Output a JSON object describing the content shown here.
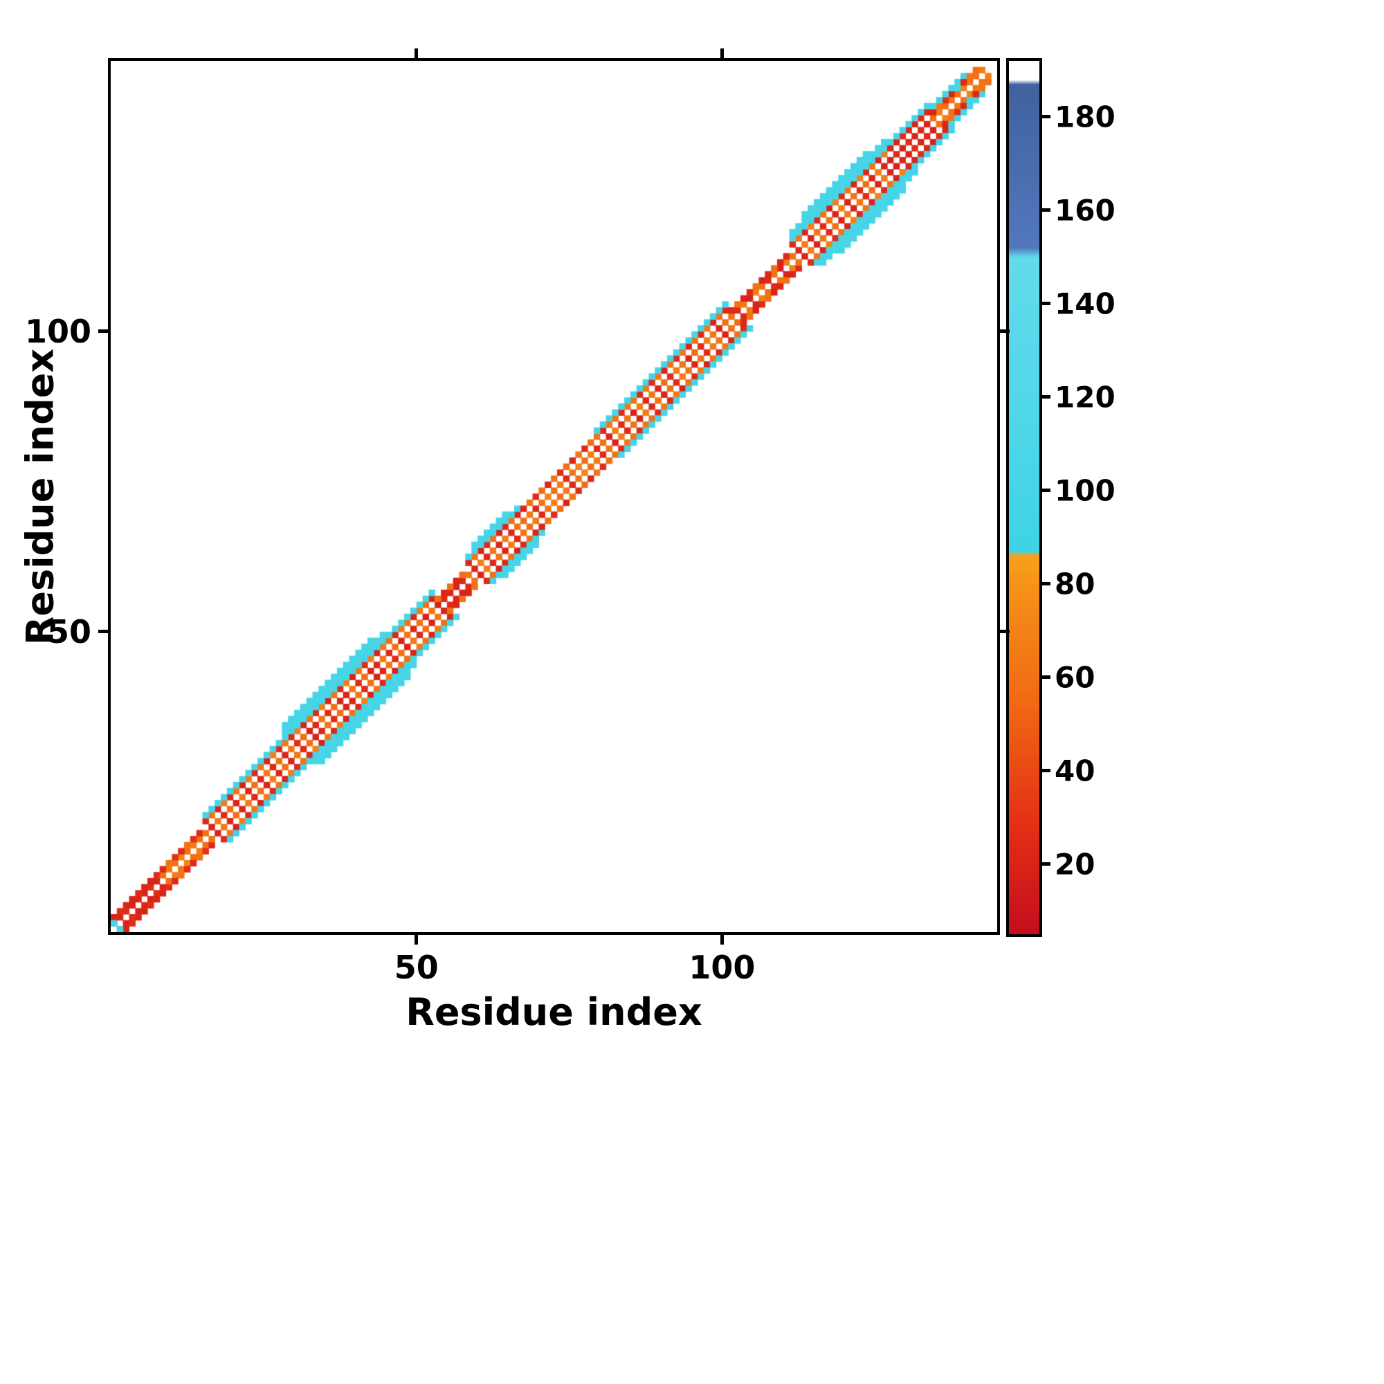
{
  "chart_data": {
    "type": "heatmap",
    "title": "",
    "xlabel": "Residue index",
    "ylabel": "Residue index",
    "x_range": [
      0,
      145
    ],
    "y_range": [
      0,
      145
    ],
    "x_ticks": [
      50,
      100
    ],
    "y_ticks": [
      50,
      100
    ],
    "grid": false,
    "legend_position": "none",
    "colorbar": {
      "range": [
        5,
        192
      ],
      "ticks": [
        20,
        40,
        60,
        80,
        100,
        120,
        140,
        160,
        180
      ],
      "stops": [
        [
          5,
          "#c40d1d"
        ],
        [
          30,
          "#e63214"
        ],
        [
          55,
          "#f06a14"
        ],
        [
          78,
          "#f68f18"
        ],
        [
          86,
          "#f9a01b"
        ],
        [
          87,
          "#3ed3e6"
        ],
        [
          120,
          "#52d7e9"
        ],
        [
          150,
          "#62dbec"
        ],
        [
          152,
          "#5377bd"
        ],
        [
          187,
          "#41619f"
        ],
        [
          188,
          "#ffffff"
        ],
        [
          192,
          "#ffffff"
        ]
      ]
    },
    "contacts": {
      "symmetric": true,
      "note": "cells are residue pairs (i, i+offset) with heat values; map is symmetric about the empty white diagonal",
      "segments": [
        {
          "start": 1,
          "end": 9,
          "offsets": {
            "1": [
              22,
              20,
              26,
              20
            ],
            "2": [
              20,
              26,
              22
            ]
          }
        },
        {
          "start": 9,
          "end": 16,
          "offsets": {
            "1": [
              58,
              66,
              60,
              70
            ],
            "2": [
              24,
              60,
              28
            ]
          }
        },
        {
          "start": 16,
          "end": 29,
          "offsets": {
            "1": [
              60,
              22,
              66,
              24
            ],
            "3": [
              24,
              62,
              20,
              66
            ],
            "4": [
              100,
              98,
              102
            ]
          }
        },
        {
          "start": 29,
          "end": 46,
          "offsets": {
            "1": [
              22,
              64,
              26,
              58,
              20
            ],
            "3": [
              62,
              24,
              68,
              20
            ],
            "4": [
              100,
              98,
              104,
              100
            ],
            "5": [
              100,
              102
            ]
          }
        },
        {
          "start": 29,
          "end": 44,
          "offsets": {
            "6": [
              100,
              98
            ]
          }
        },
        {
          "start": 46,
          "end": 54,
          "offsets": {
            "1": [
              24,
              60,
              20,
              64
            ],
            "3": [
              60,
              22,
              64
            ],
            "4": [
              100,
              102
            ]
          }
        },
        {
          "start": 54,
          "end": 59,
          "offsets": {
            "1": [
              20,
              24,
              22
            ],
            "2": [
              58,
              22
            ]
          }
        },
        {
          "start": 59,
          "end": 68,
          "offsets": {
            "1": [
              62,
              22,
              68,
              24
            ],
            "3": [
              24,
              60,
              20
            ],
            "4": [
              100,
              98
            ]
          }
        },
        {
          "start": 60,
          "end": 66,
          "offsets": {
            "5": [
              100,
              102
            ]
          }
        },
        {
          "start": 68,
          "end": 80,
          "offsets": {
            "1": [
              58,
              66,
              24,
              62,
              70
            ],
            "3": [
              22,
              62,
              26,
              58
            ]
          }
        },
        {
          "start": 80,
          "end": 89,
          "offsets": {
            "1": [
              24,
              62,
              20,
              66
            ],
            "3": [
              60,
              24,
              64
            ],
            "4": [
              100,
              100,
              98
            ]
          }
        },
        {
          "start": 89,
          "end": 102,
          "offsets": {
            "1": [
              62,
              22,
              58,
              26,
              66
            ],
            "3": [
              24,
              64,
              20,
              60
            ],
            "4": [
              98,
              102,
              100
            ]
          }
        },
        {
          "start": 102,
          "end": 112,
          "offsets": {
            "1": [
              58,
              24,
              64,
              20,
              68
            ],
            "2": [
              24,
              60,
              20
            ]
          }
        },
        {
          "start": 112,
          "end": 128,
          "offsets": {
            "1": [
              60,
              22,
              66,
              20,
              62,
              26
            ],
            "3": [
              24,
              62,
              20,
              68
            ],
            "4": [
              100,
              98,
              102,
              100
            ],
            "5": [
              102,
              100
            ]
          }
        },
        {
          "start": 114,
          "end": 125,
          "offsets": {
            "6": [
              100,
              102,
              98
            ]
          }
        },
        {
          "start": 128,
          "end": 135,
          "offsets": {
            "1": [
              20,
              24,
              20,
              26
            ],
            "3": [
              22,
              20,
              26
            ],
            "4": [
              100,
              102
            ]
          }
        },
        {
          "start": 135,
          "end": 141,
          "offsets": {
            "1": [
              60,
              68,
              58,
              64
            ],
            "2": [
              22,
              62,
              26
            ],
            "3": [
              100,
              98
            ]
          }
        },
        {
          "start": 141,
          "end": 144,
          "offsets": {
            "1": [
              64,
              58,
              66
            ]
          }
        }
      ],
      "extra_cells": [
        [
          1,
          2,
          100
        ],
        [
          139,
          141,
          100
        ],
        [
          140,
          142,
          24
        ],
        [
          141,
          143,
          62
        ],
        [
          142,
          144,
          58
        ]
      ]
    }
  }
}
